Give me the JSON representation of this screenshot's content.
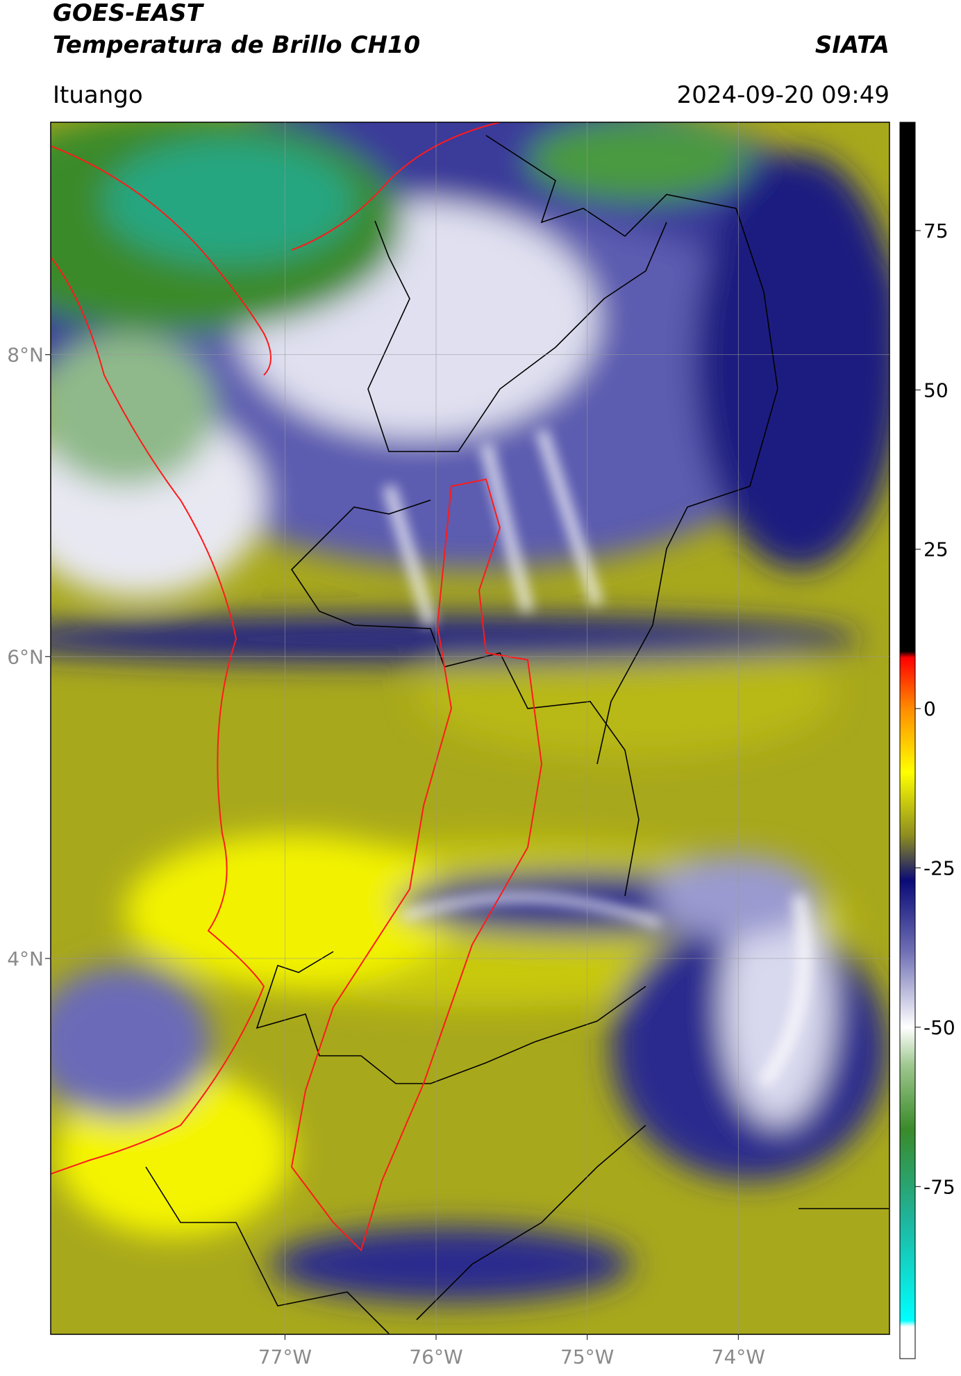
{
  "header": {
    "title": "GOES-EAST",
    "subtitle": "Temperatura de Brillo CH10",
    "source": "SIATA",
    "location": "Ituango",
    "datetime": "2024-09-20 09:49"
  },
  "map": {
    "xlim": [
      -78.55,
      -73.0
    ],
    "ylim": [
      1.51,
      9.54
    ],
    "xticks": [
      {
        "value": -77,
        "label": "77°W"
      },
      {
        "value": -76,
        "label": "76°W"
      },
      {
        "value": -75,
        "label": "75°W"
      },
      {
        "value": -74,
        "label": "74°W"
      }
    ],
    "yticks": [
      {
        "value": 8,
        "label": "8°N"
      },
      {
        "value": 6,
        "label": "6°N"
      },
      {
        "value": 4,
        "label": "4°N"
      }
    ],
    "grid": true
  },
  "colorbar": {
    "range": [
      -102,
      92
    ],
    "ticks": [
      75,
      50,
      25,
      0,
      -25,
      -50,
      -75
    ],
    "color_stops": [
      {
        "value": 92,
        "color": "#000000"
      },
      {
        "value": 9,
        "color": "#000000"
      },
      {
        "value": 8,
        "color": "#ff0000"
      },
      {
        "value": 0,
        "color": "#ff8c00"
      },
      {
        "value": -10,
        "color": "#ffff00"
      },
      {
        "value": -20,
        "color": "#8c8c20"
      },
      {
        "value": -27,
        "color": "#0a0a78"
      },
      {
        "value": -38,
        "color": "#6e6eb4"
      },
      {
        "value": -50,
        "color": "#ffffff"
      },
      {
        "value": -56,
        "color": "#9ec78e"
      },
      {
        "value": -66,
        "color": "#3a8a2a"
      },
      {
        "value": -80,
        "color": "#1fb49b"
      },
      {
        "value": -96,
        "color": "#00ffff"
      },
      {
        "value": -97,
        "color": "#ffffff"
      },
      {
        "value": -102,
        "color": "#ffffff"
      }
    ]
  }
}
